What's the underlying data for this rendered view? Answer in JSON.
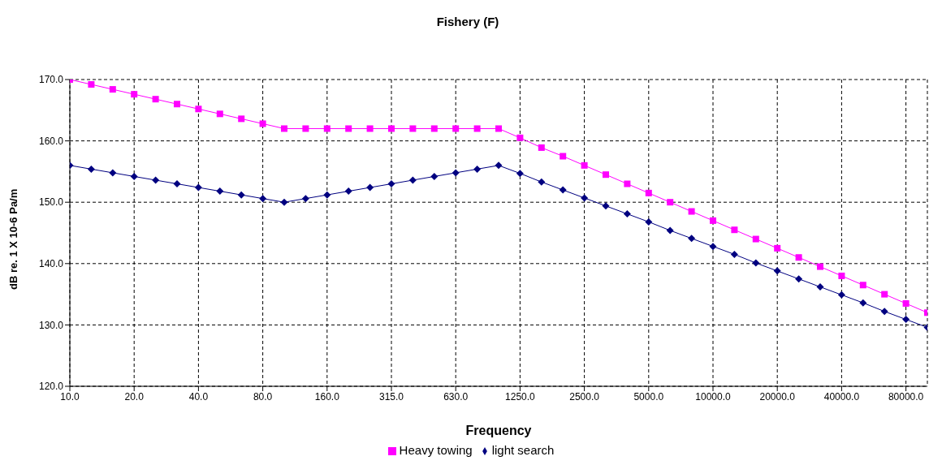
{
  "chart_data": {
    "type": "line",
    "title": "Fishery (F)",
    "xlabel": "Frequency",
    "ylabel": "dB re. 1 X 10-6 Pa/m",
    "categories": [
      "10.0",
      null,
      null,
      "20.0",
      null,
      null,
      "40.0",
      null,
      null,
      "80.0",
      null,
      null,
      "160.0",
      null,
      null,
      "315.0",
      null,
      null,
      "630.0",
      null,
      null,
      "1250.0",
      null,
      null,
      "2500.0",
      null,
      null,
      "5000.0",
      null,
      null,
      "10000.0",
      null,
      null,
      "20000.0",
      null,
      null,
      "40000.0",
      null,
      null,
      "80000.0",
      null
    ],
    "series": [
      {
        "name": "Heavy towing",
        "color": "#ff00ff",
        "marker": "square",
        "values": [
          170,
          169.2,
          168.4,
          167.6,
          166.8,
          166.0,
          165.2,
          164.4,
          163.6,
          162.8,
          162,
          162,
          162,
          162,
          162,
          162,
          162,
          162,
          162,
          162,
          162,
          160.5,
          158.9,
          157.5,
          156.0,
          154.5,
          153.0,
          151.5,
          150.0,
          148.5,
          147.0,
          145.5,
          144.0,
          142.5,
          141.0,
          139.5,
          138.0,
          136.5,
          135.0,
          133.5,
          132.0
        ]
      },
      {
        "name": "light search",
        "color": "#000080",
        "marker": "diamond",
        "values": [
          156,
          155.4,
          154.8,
          154.2,
          153.6,
          153.0,
          152.4,
          151.8,
          151.2,
          150.6,
          150.0,
          150.6,
          151.2,
          151.8,
          152.4,
          153.0,
          153.6,
          154.2,
          154.8,
          155.4,
          156.0,
          154.7,
          153.3,
          152.0,
          150.7,
          149.4,
          148.1,
          146.8,
          145.4,
          144.1,
          142.8,
          141.5,
          140.1,
          138.8,
          137.5,
          136.2,
          134.9,
          133.6,
          132.2,
          130.9,
          129.6
        ]
      }
    ],
    "ylim": [
      120,
      170
    ],
    "yticks": [
      {
        "value": 120,
        "label": "120.0"
      },
      {
        "value": 130,
        "label": "130.0"
      },
      {
        "value": 140,
        "label": "140.0"
      },
      {
        "value": 150,
        "label": "150.0"
      },
      {
        "value": 160,
        "label": "160.0"
      },
      {
        "value": 170,
        "label": "170.0"
      }
    ],
    "grid": true,
    "legend": "bottom"
  }
}
